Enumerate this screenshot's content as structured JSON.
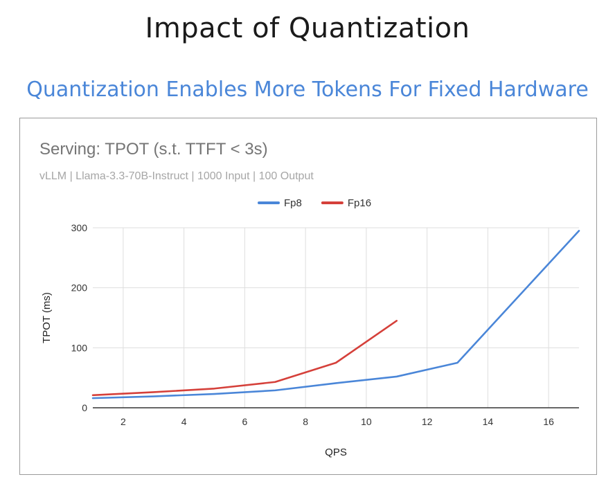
{
  "slide": {
    "title": "Impact of Quantization",
    "subtitle": "Quantization Enables More Tokens For Fixed Hardware"
  },
  "chart_data": {
    "type": "line",
    "title": "Serving: TPOT (s.t. TTFT < 3s)",
    "subtitle": "vLLM | Llama-3.3-70B-Instruct | 1000 Input | 100 Output",
    "xlabel": "QPS",
    "ylabel": "TPOT (ms)",
    "xlim": [
      1,
      17
    ],
    "ylim": [
      0,
      300
    ],
    "xticks": [
      2,
      4,
      6,
      8,
      10,
      12,
      14,
      16
    ],
    "yticks": [
      0,
      100,
      200,
      300
    ],
    "grid": true,
    "legend_position": "top",
    "series": [
      {
        "name": "Fp8",
        "color": "#4a86d8",
        "x": [
          1,
          3,
          5,
          7,
          9,
          11,
          13,
          15,
          17
        ],
        "y": [
          16,
          19,
          23,
          29,
          41,
          52,
          75,
          185,
          295
        ]
      },
      {
        "name": "Fp16",
        "color": "#d5403a",
        "x": [
          1,
          3,
          5,
          7,
          9,
          11
        ],
        "y": [
          21,
          26,
          32,
          43,
          75,
          145
        ]
      }
    ]
  }
}
